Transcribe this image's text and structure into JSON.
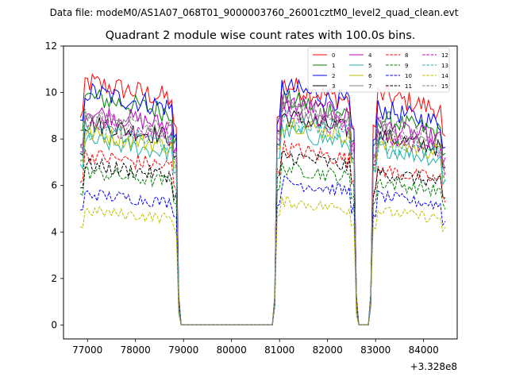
{
  "chart_data": {
    "type": "line",
    "suptitle": "Data file: modeM0/AS1A07_068T01_9000003760_26001cztM0_level2_quad_clean.evt",
    "title": "Quadrant 2 module wise count rates with 100.0s bins.",
    "xlabel": "",
    "ylabel": "",
    "x_offset_label": "+3.328e8",
    "xlim": [
      76500,
      84700
    ],
    "ylim": [
      -0.6,
      12
    ],
    "x_ticks": [
      77000,
      78000,
      79000,
      80000,
      81000,
      82000,
      83000,
      84000
    ],
    "x_tick_labels": [
      "77000",
      "78000",
      "79000",
      "80000",
      "81000",
      "82000",
      "83000",
      "84000"
    ],
    "y_ticks": [
      0,
      2,
      4,
      6,
      8,
      10,
      12
    ],
    "y_tick_labels": [
      "0",
      "2",
      "4",
      "6",
      "8",
      "10",
      "12"
    ],
    "legend_position": "top-right",
    "segments": [
      {
        "x_start": 76850,
        "x_end": 78850
      },
      {
        "x_start": 80950,
        "x_end": 82550
      },
      {
        "x_start": 82950,
        "x_end": 84450
      }
    ],
    "series": [
      {
        "name": "0",
        "color": "#ff0000",
        "style": "solid",
        "levels": [
          10.0,
          9.9,
          9.5
        ]
      },
      {
        "name": "1",
        "color": "#008000",
        "style": "solid",
        "levels": [
          9.4,
          9.3,
          8.5
        ]
      },
      {
        "name": "2",
        "color": "#0000ff",
        "style": "solid",
        "levels": [
          9.6,
          9.8,
          8.9
        ]
      },
      {
        "name": "3",
        "color": "#000000",
        "style": "solid",
        "levels": [
          8.3,
          8.6,
          7.8
        ]
      },
      {
        "name": "4",
        "color": "#bf00bf",
        "style": "solid",
        "levels": [
          8.8,
          9.2,
          8.2
        ]
      },
      {
        "name": "5",
        "color": "#20b2aa",
        "style": "solid",
        "levels": [
          7.6,
          8.0,
          7.3
        ]
      },
      {
        "name": "6",
        "color": "#bfbf00",
        "style": "solid",
        "levels": [
          7.9,
          8.4,
          7.6
        ]
      },
      {
        "name": "7",
        "color": "#808080",
        "style": "solid",
        "levels": [
          8.5,
          8.9,
          8.0
        ]
      },
      {
        "name": "8",
        "color": "#ff0000",
        "style": "dashed",
        "levels": [
          7.0,
          7.3,
          6.4
        ]
      },
      {
        "name": "9",
        "color": "#008000",
        "style": "dashed",
        "levels": [
          6.3,
          6.5,
          5.9
        ]
      },
      {
        "name": "10",
        "color": "#0000ff",
        "style": "dashed",
        "levels": [
          5.4,
          5.9,
          5.3
        ]
      },
      {
        "name": "11",
        "color": "#000000",
        "style": "dashed",
        "levels": [
          6.6,
          7.0,
          6.3
        ]
      },
      {
        "name": "12",
        "color": "#bf00bf",
        "style": "dashed",
        "levels": [
          8.3,
          8.7,
          7.8
        ]
      },
      {
        "name": "13",
        "color": "#20b2aa",
        "style": "dashed",
        "levels": [
          8.0,
          8.5,
          7.5
        ]
      },
      {
        "name": "14",
        "color": "#bfbf00",
        "style": "dashed",
        "levels": [
          4.7,
          5.1,
          4.7
        ]
      },
      {
        "name": "15",
        "color": "#808080",
        "style": "dashed",
        "levels": [
          8.6,
          9.0,
          8.2
        ]
      }
    ]
  }
}
